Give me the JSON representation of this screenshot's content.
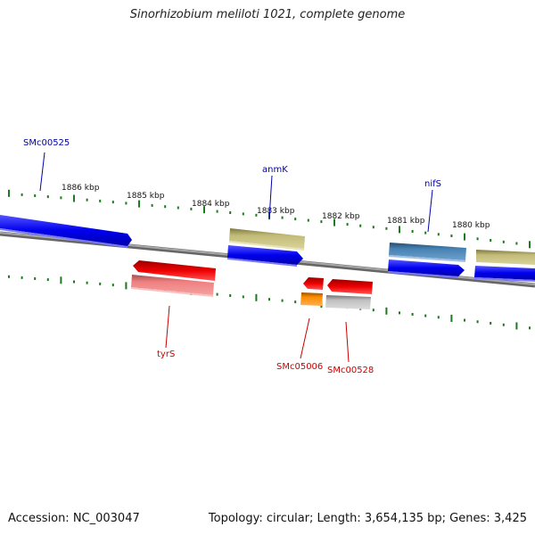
{
  "title": "Sinorhizobium meliloti 1021, complete genome",
  "footer": {
    "accession": "Accession: NC_003047",
    "summary": "Topology: circular; Length: 3,654,135 bp; Genes: 3,425"
  },
  "colors": {
    "backbone": "#808080",
    "ticks": "#1e7a1e",
    "forward_label": "#0000aa",
    "reverse_label": "#cc0000",
    "blue_gene": "#0000ee",
    "red_gene": "#ee0000",
    "khaki_gene": "#c2bb78",
    "steel_gene": "#4682b4",
    "pink_gene": "#f08080",
    "orange_gene": "#ff8c00",
    "gray_gene": "#c0c0c0"
  },
  "scale_labels": [
    "1886 kbp",
    "1885 kbp",
    "1884 kbp",
    "1883 kbp",
    "1882 kbp",
    "1881 kbp",
    "1880 kbp"
  ],
  "gene_labels": {
    "forward": [
      "SMc00525",
      "anmK",
      "nifS"
    ],
    "reverse": [
      "tyrS",
      "SMc05006",
      "SMc00528"
    ]
  }
}
